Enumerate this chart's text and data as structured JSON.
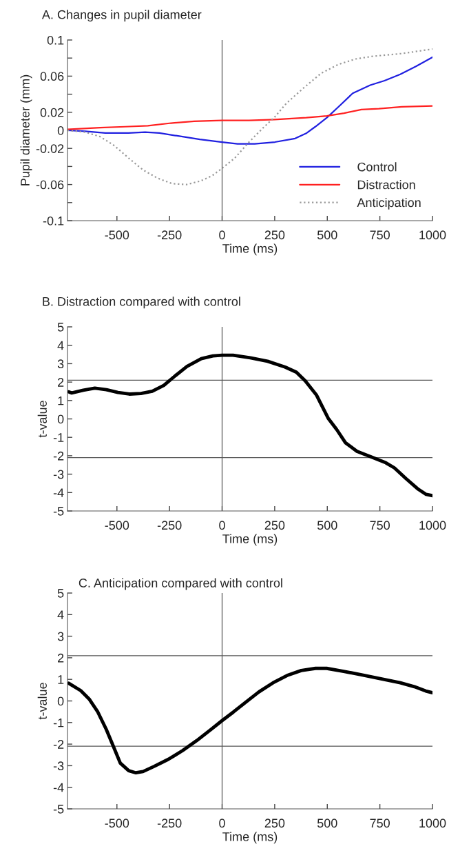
{
  "chart_data": [
    {
      "type": "line",
      "title": "A. Changes in pupil diameter",
      "xlabel": "Time (ms)",
      "ylabel": "Pupil diameter (mm)",
      "xlim": [
        -735,
        1000
      ],
      "xticks": [
        -500,
        -250,
        0,
        250,
        500,
        750,
        1000
      ],
      "ylim": [
        -0.1,
        0.1
      ],
      "yticks": [
        -0.1,
        {
          "value": -0.08,
          "label": null
        },
        -0.06,
        {
          "value": -0.04,
          "label": null
        },
        -0.02,
        0,
        0.02,
        {
          "value": 0.04,
          "label": null
        },
        0.06,
        {
          "value": 0.08,
          "label": null
        },
        0.1
      ],
      "grid": false,
      "legend": "bottom right",
      "ref_lines": [
        {
          "axis": "x",
          "value": 0,
          "color": "#555555"
        }
      ],
      "series": [
        {
          "name": "Control",
          "color": "#2020e0",
          "line_style": "solid",
          "x": [
            -735,
            -650,
            -555,
            -445,
            -366,
            -298,
            -188,
            -106,
            0,
            73,
            155,
            251,
            347,
            402,
            443,
            498,
            553,
            621,
            704,
            772,
            847,
            923,
            1000
          ],
          "values": [
            0,
            -0.001,
            -0.003,
            -0.003,
            -0.002,
            -0.003,
            -0.007,
            -0.01,
            -0.013,
            -0.015,
            -0.015,
            -0.013,
            -0.009,
            -0.003,
            0.004,
            0.014,
            0.026,
            0.041,
            0.05,
            0.055,
            0.062,
            0.071,
            0.081
          ]
        },
        {
          "name": "Distraction",
          "color": "#ff2020",
          "line_style": "solid",
          "x": [
            -735,
            -580,
            -462,
            -353,
            -243,
            -133,
            0,
            128,
            250,
            400,
            498,
            580,
            662,
            745,
            855,
            1000
          ],
          "values": [
            0.001,
            0.003,
            0.004,
            0.005,
            0.008,
            0.01,
            0.011,
            0.011,
            0.012,
            0.014,
            0.016,
            0.019,
            0.023,
            0.024,
            0.026,
            0.027
          ]
        },
        {
          "name": "Anticipation",
          "color": "#999999",
          "line_style": "dotted",
          "x": [
            -735,
            -650,
            -580,
            -512,
            -443,
            -375,
            -306,
            -238,
            -169,
            -101,
            -46,
            0,
            59,
            128,
            196,
            251,
            306,
            388,
            470,
            553,
            635,
            717,
            855,
            1000
          ],
          "values": [
            0,
            -0.002,
            -0.007,
            -0.017,
            -0.031,
            -0.044,
            -0.053,
            -0.059,
            -0.06,
            -0.056,
            -0.05,
            -0.042,
            -0.031,
            -0.013,
            0.003,
            0.015,
            0.03,
            0.047,
            0.063,
            0.073,
            0.079,
            0.082,
            0.085,
            0.09
          ]
        }
      ]
    },
    {
      "type": "line",
      "title": "B. Distraction compared with control",
      "xlabel": "Time (ms)",
      "ylabel": "t-value",
      "xlim": [
        -735,
        1000
      ],
      "xticks": [
        -500,
        -250,
        0,
        250,
        500,
        750,
        1000
      ],
      "ylim": [
        -5,
        5
      ],
      "yticks": [
        -5,
        -4,
        -3,
        -2,
        -1,
        0,
        1,
        2,
        3,
        4,
        5
      ],
      "grid": false,
      "ref_lines": [
        {
          "axis": "x",
          "value": 0,
          "color": "#555555"
        },
        {
          "axis": "y",
          "value": 2.1,
          "color": "#555555"
        },
        {
          "axis": "y",
          "value": -2.1,
          "color": "#555555"
        }
      ],
      "series": [
        {
          "color": "#000000",
          "line_style": "solid",
          "x": [
            -729,
            -715,
            -660,
            -605,
            -550,
            -495,
            -441,
            -386,
            -332,
            -277,
            -222,
            -167,
            -99,
            -44,
            0,
            52,
            134,
            216,
            299,
            353,
            395,
            449,
            504,
            545,
            586,
            641,
            710,
            778,
            819,
            874,
            929,
            970,
            1000
          ],
          "values": [
            1.47,
            1.41,
            1.56,
            1.67,
            1.59,
            1.44,
            1.35,
            1.38,
            1.5,
            1.82,
            2.35,
            2.85,
            3.27,
            3.42,
            3.46,
            3.46,
            3.32,
            3.13,
            2.82,
            2.54,
            2.07,
            1.29,
            0.04,
            -0.58,
            -1.29,
            -1.76,
            -2.07,
            -2.38,
            -2.66,
            -3.24,
            -3.79,
            -4.1,
            -4.17
          ]
        }
      ]
    },
    {
      "type": "line",
      "title": "C. Anticipation compared with control",
      "xlabel": "Time (ms)",
      "ylabel": "t-value",
      "xlim": [
        -735,
        1000
      ],
      "xticks": [
        -500,
        -250,
        0,
        250,
        500,
        750,
        1000
      ],
      "ylim": [
        -5,
        5
      ],
      "yticks": [
        -5,
        -4,
        -3,
        -2,
        -1,
        0,
        1,
        2,
        3,
        4,
        5
      ],
      "grid": false,
      "ref_lines": [
        {
          "axis": "x",
          "value": 0,
          "color": "#555555"
        },
        {
          "axis": "y",
          "value": 2.1,
          "color": "#555555"
        },
        {
          "axis": "y",
          "value": -2.1,
          "color": "#555555"
        }
      ],
      "series": [
        {
          "color": "#000000",
          "line_style": "solid",
          "x": [
            -729,
            -672,
            -632,
            -591,
            -551,
            -517,
            -484,
            -444,
            -410,
            -376,
            -323,
            -255,
            -188,
            -121,
            -54,
            0,
            54,
            108,
            175,
            242,
            309,
            376,
            444,
            497,
            578,
            659,
            739,
            847,
            914,
            968,
            1000
          ],
          "values": [
            0.82,
            0.48,
            0.09,
            -0.51,
            -1.31,
            -2.1,
            -2.88,
            -3.23,
            -3.33,
            -3.27,
            -3.03,
            -2.7,
            -2.3,
            -1.84,
            -1.33,
            -0.91,
            -0.51,
            -0.09,
            0.42,
            0.84,
            1.18,
            1.41,
            1.51,
            1.51,
            1.37,
            1.22,
            1.06,
            0.84,
            0.66,
            0.46,
            0.38
          ]
        }
      ]
    }
  ]
}
